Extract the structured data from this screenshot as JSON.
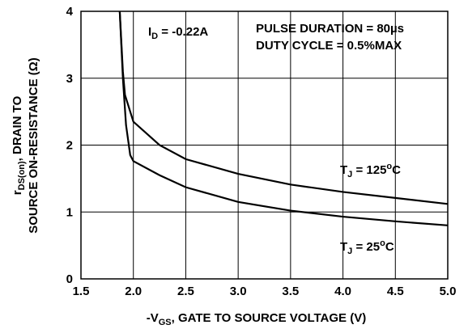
{
  "chart_data": {
    "type": "line",
    "xlabel": [
      {
        "text": "-V"
      },
      {
        "sub": "GS"
      },
      {
        "text": ", GATE TO SOURCE VOLTAGE (V)"
      }
    ],
    "ylabel": [
      [
        {
          "text": "r"
        },
        {
          "sub": "DS(on)"
        },
        {
          "text": ", DRAIN TO"
        }
      ],
      [
        {
          "text": "SOURCE ON-RESISTANCE (Ω)"
        }
      ]
    ],
    "annotations": [
      [
        {
          "text": "I"
        },
        {
          "sub": "D"
        },
        {
          "text": " = -0.22A"
        }
      ],
      [
        {
          "text": "PULSE DURATION = 80µs"
        }
      ],
      [
        {
          "text": "DUTY CYCLE = 0.5%MAX"
        }
      ]
    ],
    "series": [
      {
        "label": [
          {
            "text": "T"
          },
          {
            "sub": "J"
          },
          {
            "text": " = 125"
          },
          {
            "sup": "o"
          },
          {
            "text": "C"
          }
        ],
        "color": "#000000",
        "x": [
          1.87,
          1.9,
          1.92,
          2.0,
          2.25,
          2.5,
          3.0,
          3.5,
          4.0,
          4.5,
          5.0
        ],
        "values": [
          4,
          3.1,
          2.75,
          2.35,
          2.0,
          1.79,
          1.57,
          1.41,
          1.3,
          1.21,
          1.12
        ]
      },
      {
        "label": [
          {
            "text": "T"
          },
          {
            "sub": "J"
          },
          {
            "text": " = 25"
          },
          {
            "sup": "o"
          },
          {
            "text": "C"
          }
        ],
        "color": "#000000",
        "x": [
          1.87,
          1.9,
          1.93,
          1.97,
          2.0,
          2.25,
          2.5,
          3.0,
          3.5,
          4.0,
          4.5,
          5.0
        ],
        "values": [
          4,
          3.0,
          2.3,
          1.85,
          1.76,
          1.55,
          1.37,
          1.15,
          1.02,
          0.93,
          0.86,
          0.8
        ]
      }
    ],
    "xlim": [
      1.5,
      5.0
    ],
    "xticks": [
      1.5,
      {
        "value": 2,
        "label": "2.0"
      },
      2.5,
      {
        "value": 3,
        "label": "3.0"
      },
      3.5,
      {
        "value": 4,
        "label": "4.0"
      },
      4.5,
      {
        "value": 5,
        "label": "5.0"
      }
    ],
    "ylim": [
      0,
      4
    ],
    "yticks": [
      0,
      1,
      2,
      3,
      4
    ],
    "grid": true
  }
}
